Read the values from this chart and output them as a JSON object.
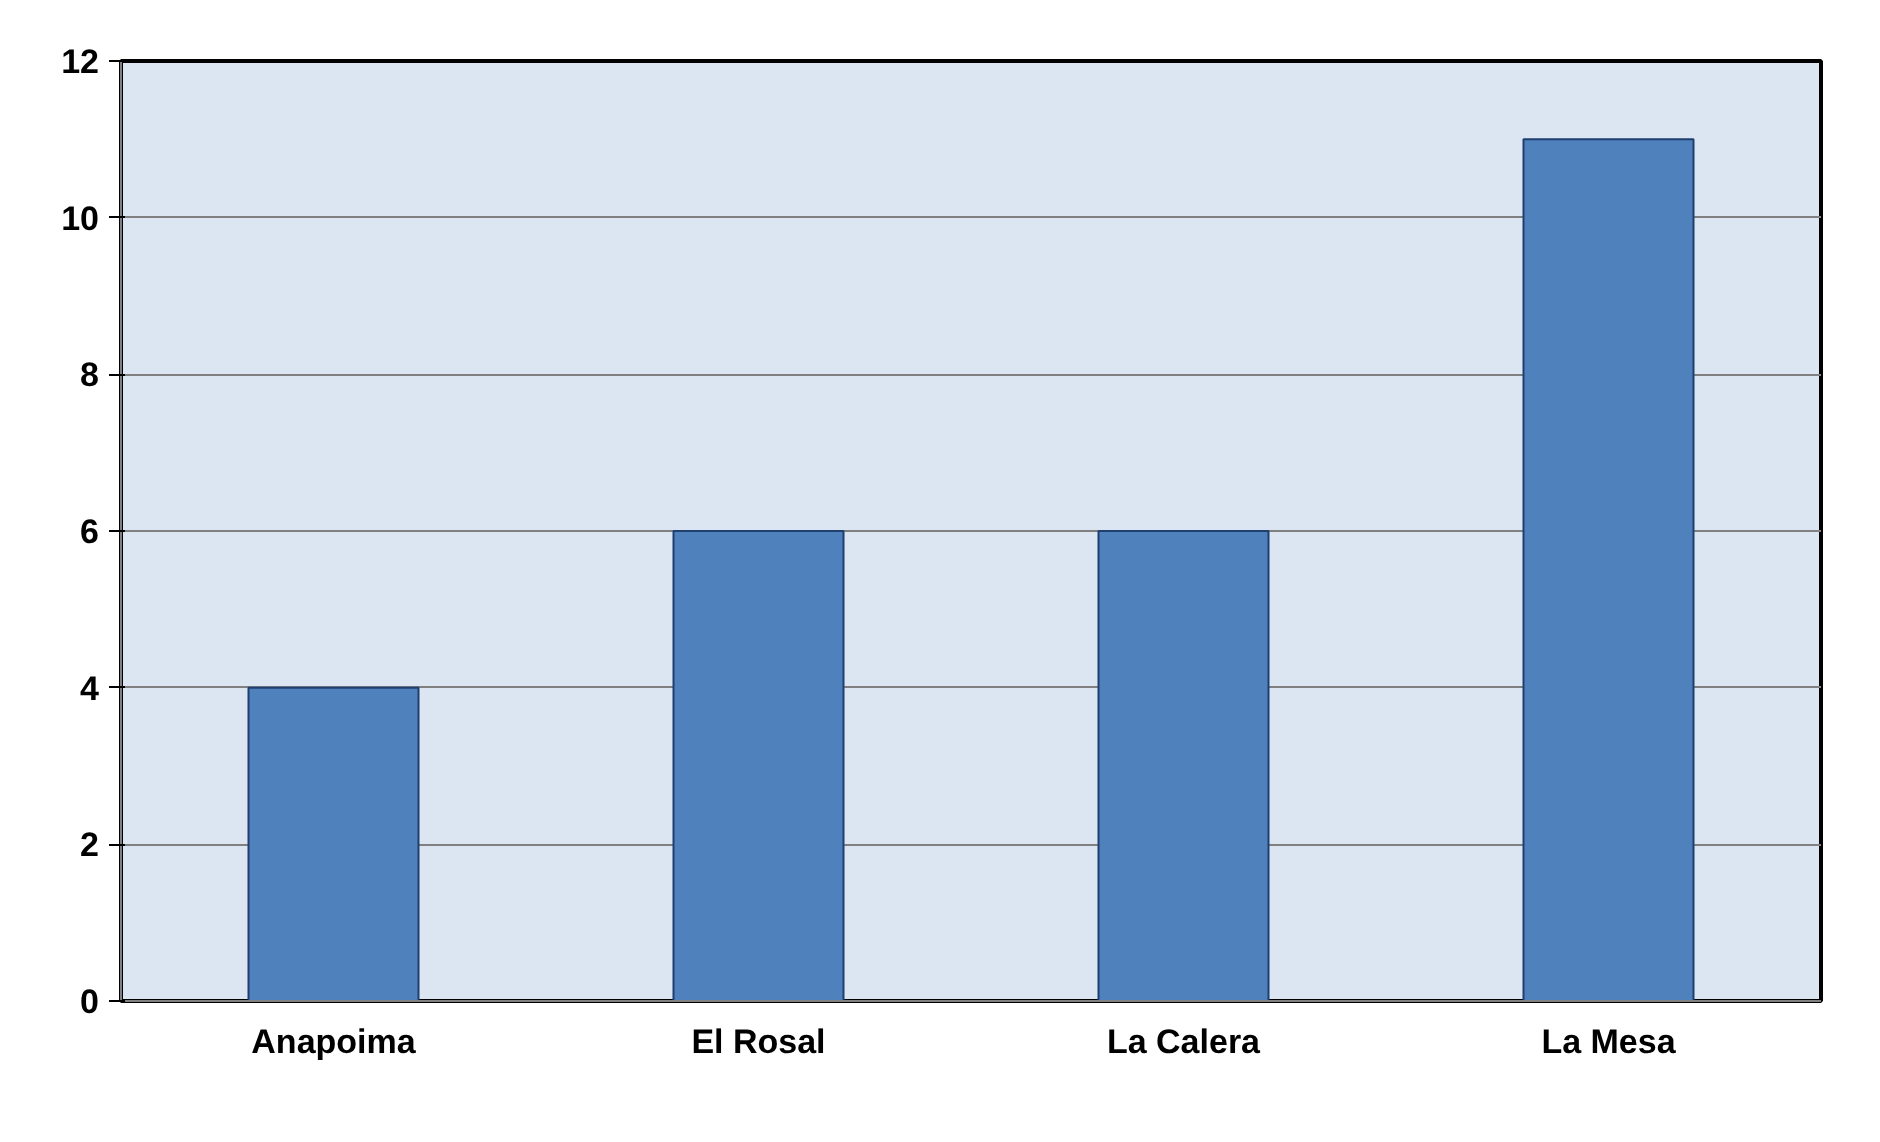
{
  "chart_data": {
    "type": "bar",
    "categories": [
      "Anapoima",
      "El Rosal",
      "La Calera",
      "La Mesa"
    ],
    "values": [
      4,
      6,
      6,
      11
    ],
    "color": "#4f81bd",
    "ylim": [
      0,
      12
    ],
    "yticks": [
      0,
      2,
      4,
      6,
      8,
      10,
      12
    ],
    "grid": "y"
  }
}
